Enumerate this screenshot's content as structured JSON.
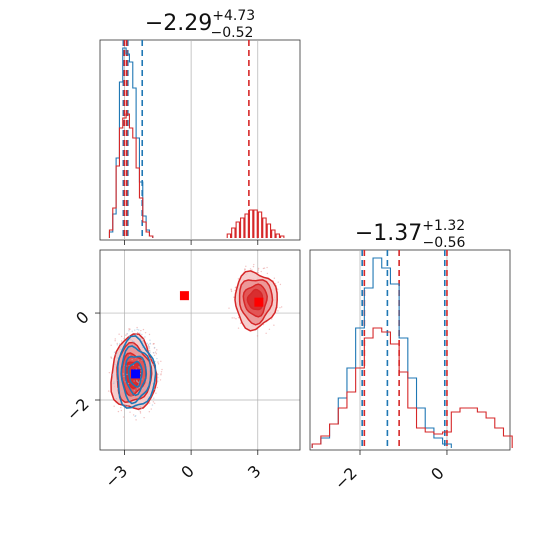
{
  "chart_data": [
    {
      "type": "corner",
      "panels": [
        {
          "id": "hist-p1",
          "type": "histogram",
          "title": {
            "median": "−2.29",
            "plus": "+4.73",
            "minus": "−0.52"
          },
          "xlim": [
            -4.1,
            4.9
          ],
          "quantile_lines": [
            {
              "color": "#1f77b4",
              "x": [
                -3.05,
                -2.85,
                -2.2
              ]
            },
            {
              "color": "#d62728",
              "x": [
                -3.0,
                -2.9,
                2.6
              ]
            }
          ],
          "series": [
            {
              "color": "#1f77b4",
              "x": [
                -3.6,
                -3.45,
                -3.3,
                -3.15,
                -3.0,
                -2.85,
                -2.7,
                -2.55,
                -2.4,
                -2.25,
                -2.1,
                -1.95,
                -1.8
              ],
              "values": [
                0.03,
                0.12,
                0.4,
                0.78,
                0.95,
                0.92,
                0.88,
                0.75,
                0.5,
                0.28,
                0.11,
                0.04,
                0.01
              ]
            },
            {
              "color": "#d62728",
              "x": [
                -3.6,
                -3.45,
                -3.3,
                -3.15,
                -3.0,
                -2.85,
                -2.7,
                -2.55,
                -2.4,
                -2.25,
                -2.1,
                -1.95,
                -1.8,
                1.7,
                1.9,
                2.1,
                2.3,
                2.5,
                2.7,
                2.9,
                3.1,
                3.3,
                3.5,
                3.7,
                3.9,
                4.1
              ],
              "values": [
                0.04,
                0.15,
                0.36,
                0.55,
                0.6,
                0.62,
                0.55,
                0.5,
                0.35,
                0.2,
                0.08,
                0.03,
                0.01,
                0.02,
                0.05,
                0.08,
                0.1,
                0.12,
                0.14,
                0.14,
                0.13,
                0.1,
                0.07,
                0.04,
                0.02,
                0.01
              ]
            }
          ]
        },
        {
          "id": "scatter-p1-p2",
          "type": "scatter_contour",
          "xlim": [
            -4.1,
            4.9
          ],
          "ylim": [
            -3.15,
            1.45
          ],
          "x_ticks": [
            "−3",
            "0",
            "3"
          ],
          "y_ticks": [
            "0",
            "−2"
          ],
          "markers": [
            {
              "color": "#ff0000",
              "x": -0.3,
              "y": 0.4
            },
            {
              "color": "#ff0000",
              "x": 3.05,
              "y": 0.25
            },
            {
              "color": "#0000ff",
              "x": -2.5,
              "y": -1.4
            }
          ],
          "clusters": [
            {
              "color": "#d62728",
              "x": -2.6,
              "y": -1.4,
              "spread": [
                1.0,
                0.85
              ]
            },
            {
              "color": "#1f77b4",
              "x": -2.5,
              "y": -1.4,
              "spread": [
                0.85,
                0.8
              ]
            },
            {
              "color": "#d62728",
              "x": 2.9,
              "y": 0.3,
              "spread": [
                0.95,
                0.65
              ]
            }
          ]
        },
        {
          "id": "hist-p2",
          "type": "histogram",
          "title": {
            "median": "−1.37",
            "plus": "+1.32",
            "minus": "−0.56"
          },
          "xlim": [
            -3.15,
            1.45
          ],
          "x_ticks": [
            "−2",
            "0"
          ],
          "quantile_lines": [
            {
              "color": "#1f77b4",
              "x": [
                -1.95,
                -1.37,
                -0.05
              ]
            },
            {
              "color": "#d62728",
              "x": [
                -1.9,
                -1.1,
                0.0
              ]
            }
          ],
          "series": [
            {
              "color": "#1f77b4",
              "x": [
                -3.0,
                -2.8,
                -2.6,
                -2.4,
                -2.2,
                -2.0,
                -1.8,
                -1.6,
                -1.4,
                -1.2,
                -1.0,
                -0.8,
                -0.6,
                -0.4,
                -0.2,
                0.0
              ],
              "values": [
                0.02,
                0.05,
                0.12,
                0.25,
                0.4,
                0.6,
                0.8,
                0.95,
                0.9,
                0.82,
                0.55,
                0.35,
                0.2,
                0.1,
                0.05,
                0.02
              ]
            },
            {
              "color": "#d62728",
              "x": [
                -3.0,
                -2.8,
                -2.6,
                -2.4,
                -2.2,
                -2.0,
                -1.8,
                -1.6,
                -1.4,
                -1.2,
                -1.0,
                -0.8,
                -0.6,
                -0.4,
                -0.2,
                0.0,
                0.2,
                0.4,
                0.6,
                0.8,
                1.0,
                1.2,
                1.4
              ],
              "values": [
                0.02,
                0.06,
                0.12,
                0.2,
                0.28,
                0.4,
                0.55,
                0.6,
                0.58,
                0.52,
                0.38,
                0.2,
                0.1,
                0.08,
                0.07,
                0.08,
                0.18,
                0.2,
                0.2,
                0.18,
                0.15,
                0.1,
                0.06
              ]
            }
          ]
        }
      ]
    }
  ]
}
